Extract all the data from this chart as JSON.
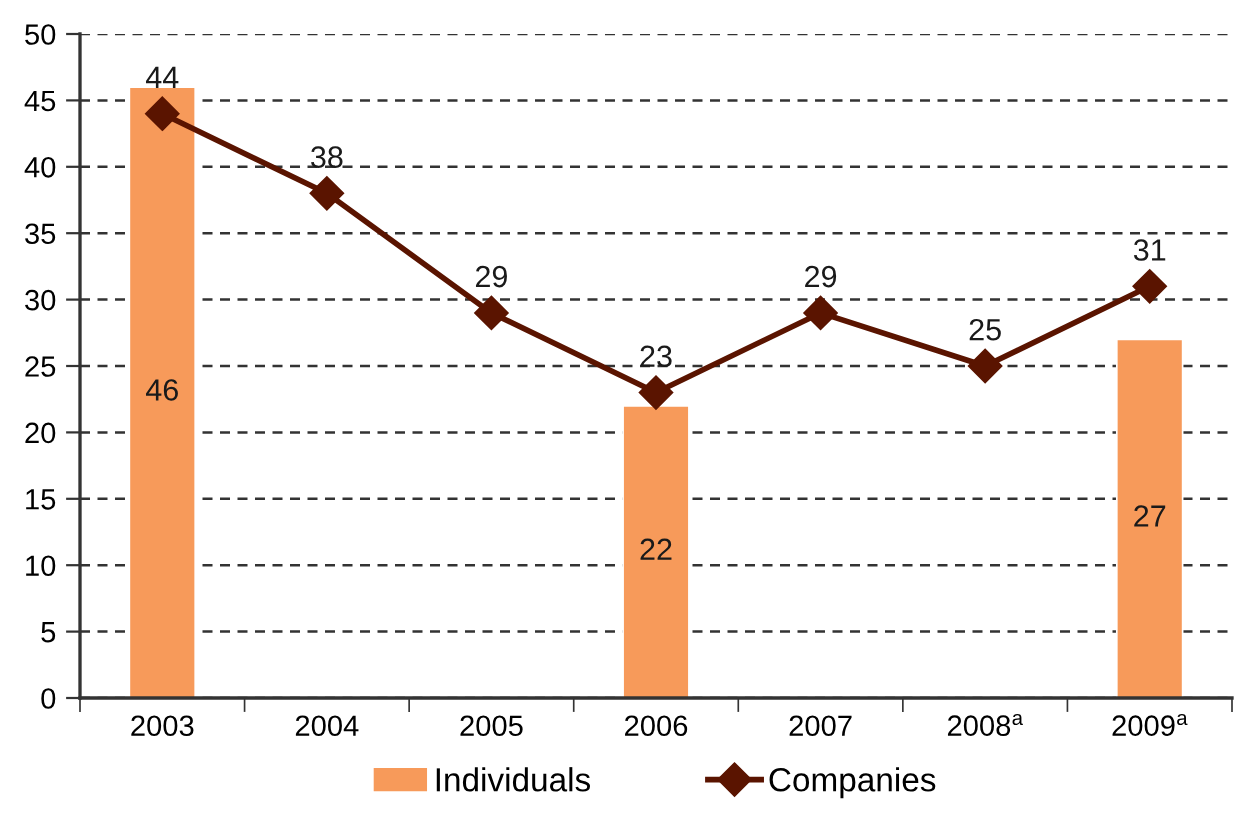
{
  "chart_data": {
    "type": "bar",
    "categories": [
      "2003",
      "2004",
      "2005",
      "2006",
      "2007",
      "2008$^{a}$",
      "2009$^{a}$"
    ],
    "series": [
      {
        "name": "Individuals",
        "color": "#f79a5a",
        "values": [
          46,
          null,
          null,
          22,
          null,
          null,
          27
        ]
      },
      {
        "name": "Companies",
        "type": "line",
        "color": "#5a1400",
        "values": [
          44,
          38,
          29,
          23,
          29,
          25,
          31
        ]
      }
    ],
    "ylim": [
      0,
      50
    ],
    "yticks": [
      0,
      5,
      10,
      15,
      20,
      25,
      30,
      35,
      40,
      45,
      50
    ],
    "grid": "y",
    "legend": "bottom",
    "marker": "diamond",
    "data_labels": true
  }
}
